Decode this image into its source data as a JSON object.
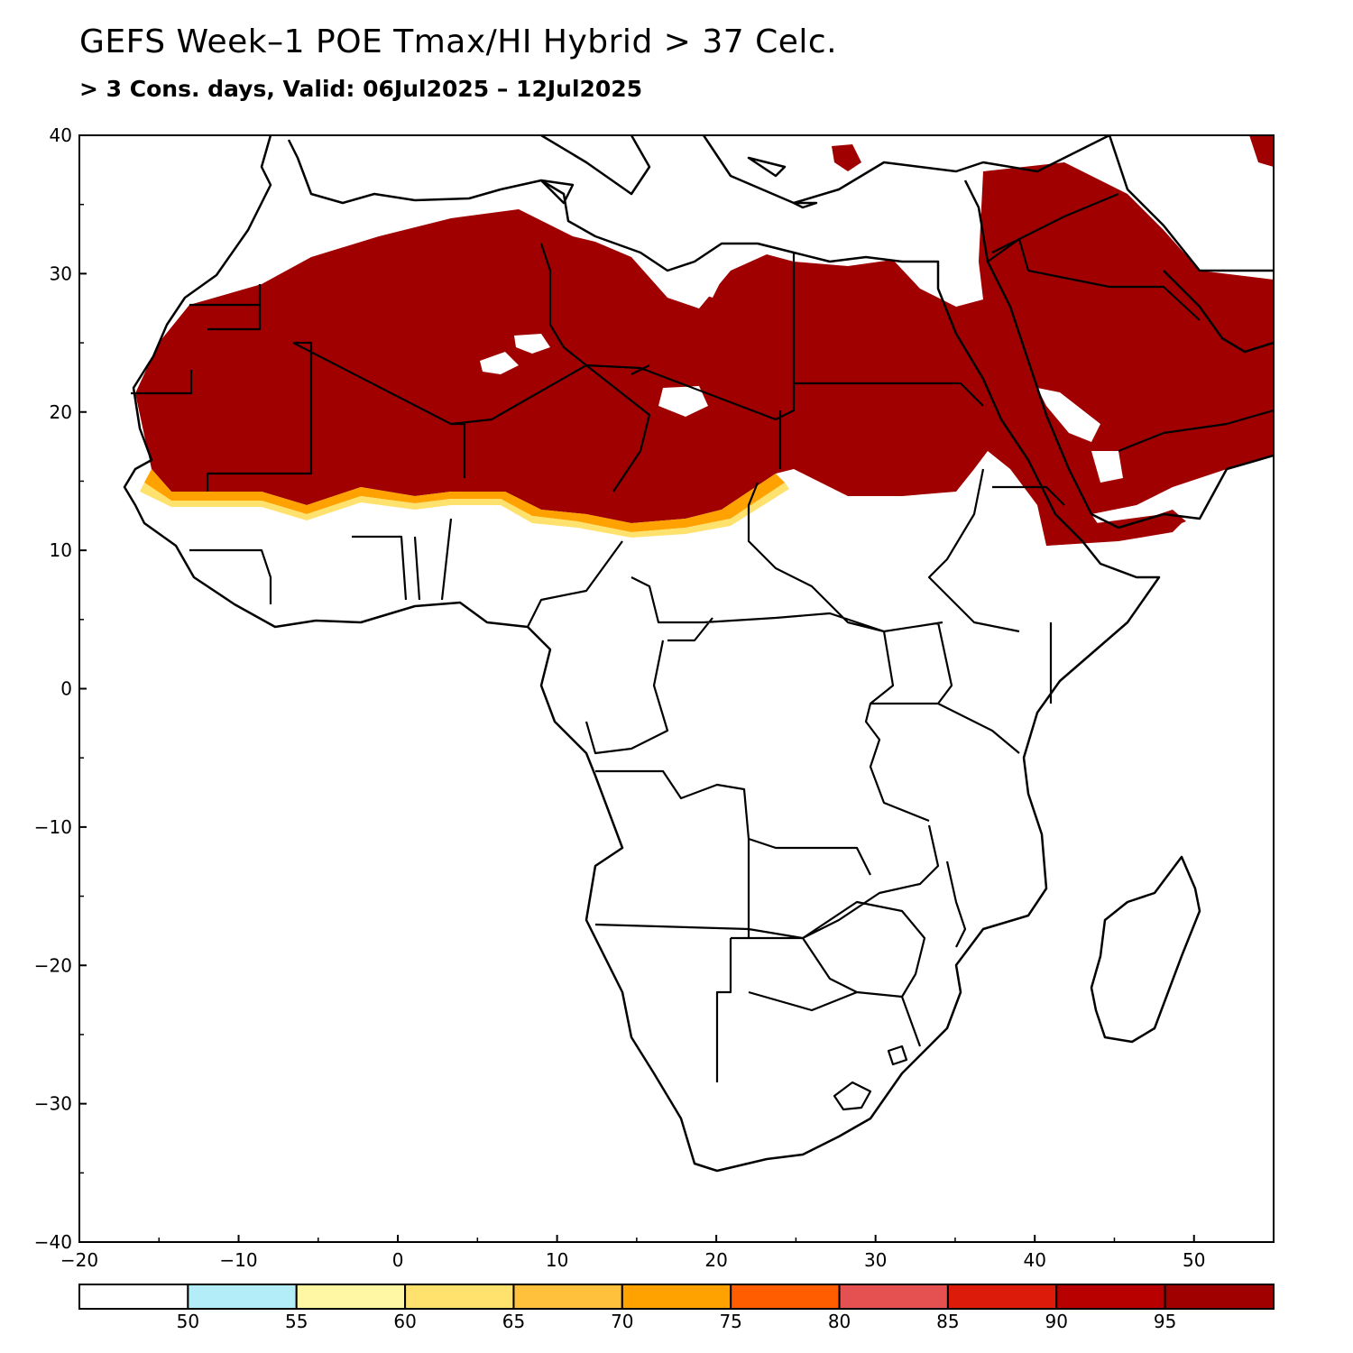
{
  "title": "GEFS Week–1 POE Tmax/HI Hybrid > 37 Celc.",
  "subtitle": "> 3 Cons. days, Valid: 06Jul2025 – 12Jul2025",
  "axes": {
    "x_ticks": [
      "−20",
      "−10",
      "0",
      "10",
      "20",
      "30",
      "40",
      "50"
    ],
    "y_ticks": [
      "40",
      "30",
      "20",
      "10",
      "0",
      "−10",
      "−20",
      "−30",
      "−40"
    ],
    "lon_range": [
      -20,
      55
    ],
    "lat_range": [
      -40,
      40
    ]
  },
  "colorbar": {
    "labels": [
      "50",
      "55",
      "60",
      "65",
      "70",
      "75",
      "80",
      "85",
      "90",
      "95"
    ],
    "colors": [
      "#ffffff",
      "#b3eef8",
      "#fff7a3",
      "#ffe16e",
      "#ffc13c",
      "#ffa200",
      "#ff5d00",
      "#e55050",
      "#dd1b0a",
      "#b90000",
      "#a00000"
    ]
  },
  "colors": {
    "high_prob": "#a00000",
    "coast": "#000000"
  }
}
